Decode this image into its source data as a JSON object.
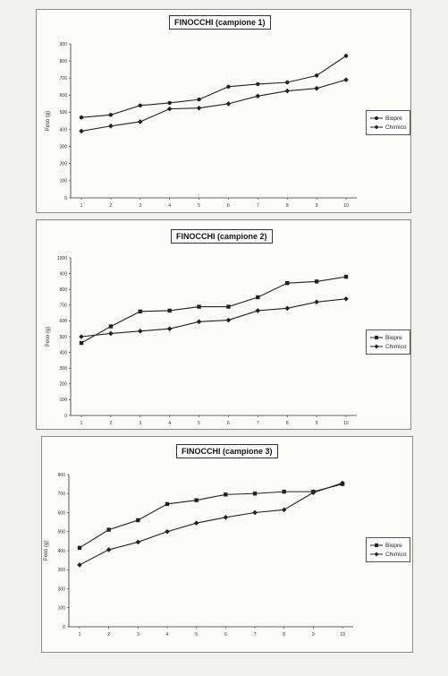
{
  "chart_data": [
    {
      "type": "line",
      "title": "FINOCCHI (campione 1)",
      "ylabel": "Peso (g)",
      "xlabel": "",
      "ylim": [
        0,
        900
      ],
      "yticks": [
        0,
        100,
        200,
        300,
        400,
        500,
        600,
        700,
        800,
        900
      ],
      "categories": [
        "1",
        "2",
        "3",
        "4",
        "5",
        "6",
        "7",
        "8",
        "9",
        "10"
      ],
      "grid": false,
      "legend": "right",
      "series": [
        {
          "name": "Biopre",
          "marker": "circle",
          "values": [
            470,
            485,
            540,
            555,
            575,
            650,
            665,
            675,
            715,
            830
          ]
        },
        {
          "name": "Chimico",
          "marker": "diamond",
          "values": [
            390,
            420,
            445,
            520,
            525,
            550,
            595,
            625,
            640,
            690
          ]
        }
      ]
    },
    {
      "type": "line",
      "title": "FINOCCHI (campione 2)",
      "ylabel": "Peso (g)",
      "xlabel": "",
      "ylim": [
        0,
        1000
      ],
      "yticks": [
        0,
        100,
        200,
        300,
        400,
        500,
        600,
        700,
        800,
        900,
        1000
      ],
      "categories": [
        "1",
        "2",
        "3",
        "4",
        "5",
        "6",
        "7",
        "8",
        "9",
        "10"
      ],
      "grid": false,
      "legend": "right",
      "series": [
        {
          "name": "Biopre",
          "marker": "square",
          "values": [
            460,
            565,
            660,
            665,
            690,
            690,
            750,
            840,
            850,
            880
          ]
        },
        {
          "name": "Chimico",
          "marker": "diamond",
          "values": [
            500,
            520,
            535,
            550,
            595,
            605,
            665,
            680,
            720,
            740
          ]
        }
      ]
    },
    {
      "type": "line",
      "title": "FINOCCHI (campione 3)",
      "ylabel": "Peso (g)",
      "xlabel": "",
      "ylim": [
        0,
        800
      ],
      "yticks": [
        0,
        100,
        200,
        300,
        400,
        500,
        600,
        700,
        800
      ],
      "categories": [
        "1",
        "2",
        "3",
        "4",
        "5",
        "6",
        "7",
        "8",
        "9",
        "10"
      ],
      "grid": false,
      "legend": "right",
      "series": [
        {
          "name": "Biopre",
          "marker": "square",
          "values": [
            415,
            510,
            560,
            645,
            665,
            695,
            700,
            710,
            710,
            750
          ]
        },
        {
          "name": "Chimico",
          "marker": "diamond",
          "values": [
            325,
            405,
            445,
            500,
            545,
            575,
            600,
            615,
            705,
            755
          ]
        }
      ]
    }
  ]
}
